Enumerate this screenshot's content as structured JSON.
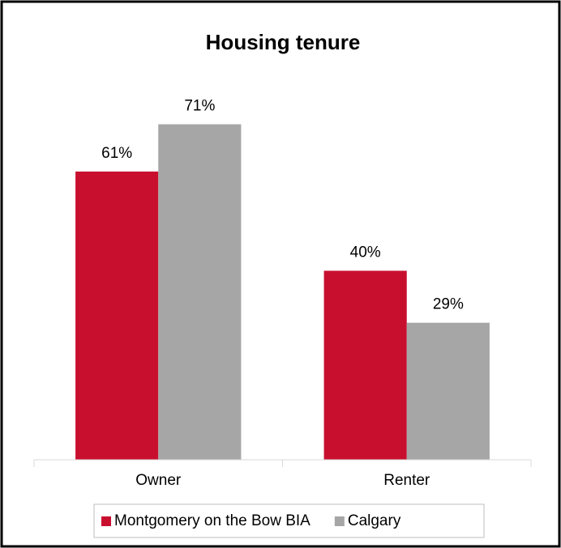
{
  "chart_data": {
    "type": "bar",
    "title": "Housing tenure",
    "categories": [
      "Owner",
      "Renter"
    ],
    "series": [
      {
        "name": "Montgomery on the Bow BIA",
        "color": "#c8102e",
        "values": [
          61,
          40
        ],
        "value_labels": [
          "61%",
          "40%"
        ]
      },
      {
        "name": "Calgary",
        "color": "#a6a6a6",
        "values": [
          71,
          29
        ],
        "value_labels": [
          "71%",
          "29%"
        ]
      }
    ],
    "ylim": [
      0,
      80
    ],
    "legend": "bottom"
  }
}
